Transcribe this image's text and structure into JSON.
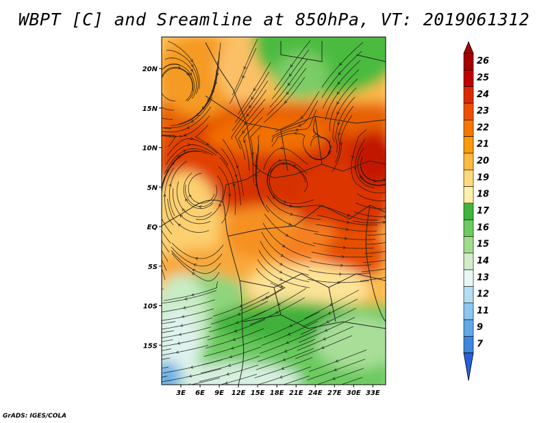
{
  "title": "WBPT [C] and Sreamline at 850hPa, VT: 2019061312",
  "credit": "GrADS: IGES/COLA",
  "map": {
    "variable": "Wet-bulb potential temperature",
    "units": "C",
    "level": "850hPa",
    "valid_time": "2019061312",
    "lon_range": [
      0,
      35
    ],
    "lat_range": [
      -20,
      24
    ],
    "x_ticks": [
      {
        "value": 3,
        "label": "3E"
      },
      {
        "value": 6,
        "label": "6E"
      },
      {
        "value": 9,
        "label": "9E"
      },
      {
        "value": 12,
        "label": "12E"
      },
      {
        "value": 15,
        "label": "15E"
      },
      {
        "value": 18,
        "label": "18E"
      },
      {
        "value": 21,
        "label": "21E"
      },
      {
        "value": 24,
        "label": "24E"
      },
      {
        "value": 27,
        "label": "27E"
      },
      {
        "value": 30,
        "label": "30E"
      },
      {
        "value": 33,
        "label": "33E"
      }
    ],
    "y_ticks": [
      {
        "value": 20,
        "label": "20N"
      },
      {
        "value": 15,
        "label": "15N"
      },
      {
        "value": 10,
        "label": "10N"
      },
      {
        "value": 5,
        "label": "5N"
      },
      {
        "value": 0,
        "label": "EQ"
      },
      {
        "value": -5,
        "label": "5S"
      },
      {
        "value": -10,
        "label": "10S"
      },
      {
        "value": -15,
        "label": "15S"
      }
    ]
  },
  "colorbar": {
    "labels": [
      "26",
      "25",
      "24",
      "23",
      "22",
      "21",
      "20",
      "19",
      "18",
      "17",
      "16",
      "15",
      "14",
      "13",
      "12",
      "11",
      "9",
      "7"
    ],
    "colors": [
      "#a50000",
      "#c00000",
      "#dc2a00",
      "#ee5000",
      "#f57700",
      "#f99a0c",
      "#fbbb40",
      "#fcd97a",
      "#fdf0aa",
      "#3fb63a",
      "#6bcb5e",
      "#a0dc8c",
      "#d0ecc8",
      "#e8f6f4",
      "#b4dcf2",
      "#8cc6ee",
      "#60a8e6",
      "#3e86de",
      "#2660d6"
    ]
  },
  "colors": {
    "coast": "#333333",
    "streamline": "#111111"
  }
}
